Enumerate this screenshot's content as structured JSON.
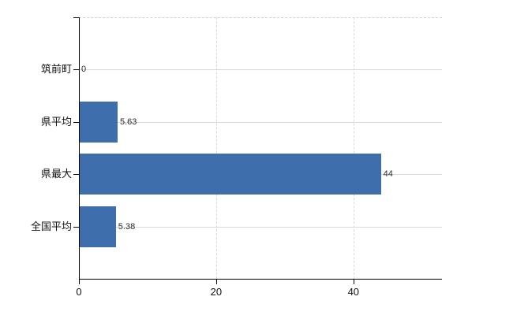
{
  "chart_data": {
    "type": "bar",
    "orientation": "horizontal",
    "title": "",
    "categories": [
      "筑前町",
      "県平均",
      "県最大",
      "全国平均"
    ],
    "values": [
      0,
      5.63,
      44,
      5.38
    ],
    "value_labels": [
      "0",
      "5.63",
      "44",
      "5.38"
    ],
    "x_ticks": [
      0,
      20,
      40
    ],
    "x_tick_labels": [
      "0",
      "20",
      "40"
    ],
    "xlim": [
      0,
      52.9
    ],
    "ylabel": "",
    "xlabel": "",
    "legend": "none",
    "grid": "horizontal solid lines at category centers; vertical dashed lines at x ticks; dashed top frame",
    "colors": {
      "bar": "#3e6eab",
      "axis": "#000000",
      "gridline": "#d4dcd4",
      "frame_dash": "#d2cfd4",
      "category_text": "#111111",
      "value_text": "#2a2a2a",
      "background": "#ffffff"
    }
  }
}
